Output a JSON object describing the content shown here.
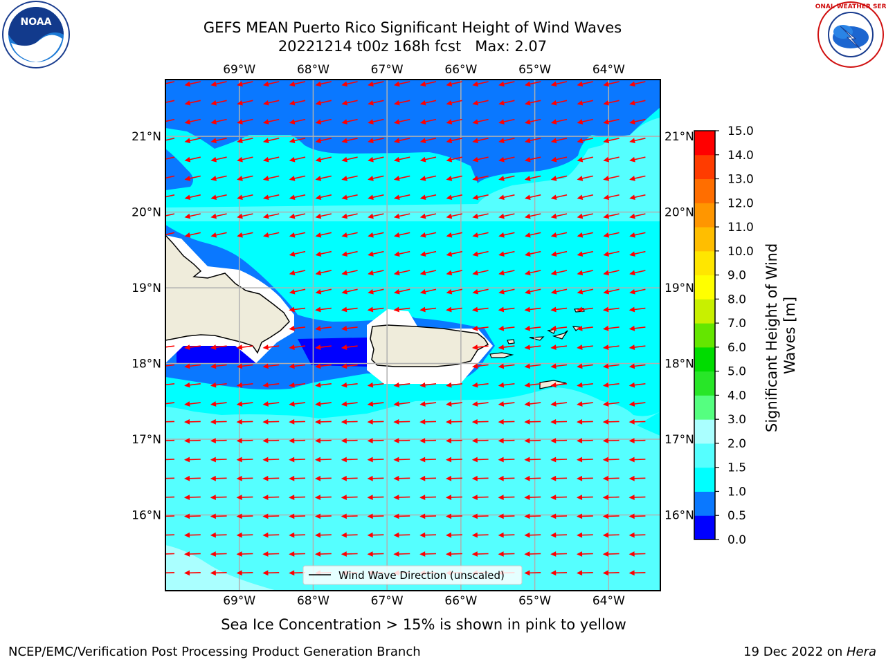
{
  "header": {
    "title_line1": "GEFS MEAN Puerto Rico Significant Height of Wind Waves",
    "title_line2": "20221214 t00z 168h fcst   Max: 2.07"
  },
  "logos": {
    "left": {
      "icon": "noaa-logo-icon",
      "text": "NOAA"
    },
    "right": {
      "icon": "nws-logo-icon",
      "text": "NATIONAL WEATHER SERVICE"
    }
  },
  "map": {
    "lon_ticks": [
      "69°W",
      "68°W",
      "67°W",
      "66°W",
      "65°W",
      "64°W"
    ],
    "lat_ticks": [
      "21°N",
      "20°N",
      "19°N",
      "18°N",
      "17°N",
      "16°N"
    ],
    "lon_range": [
      -70.0,
      -63.3
    ],
    "lat_range": [
      15.0,
      21.75
    ],
    "land_color": "#efecdb",
    "arrow_color": "#ff0000",
    "legend_label": "Wind Wave Direction (unscaled)"
  },
  "colorbar": {
    "label": "Significant Height of Wind Waves [m]",
    "levels": [
      "0.0",
      "0.5",
      "1.0",
      "1.5",
      "2.0",
      "3.0",
      "4.0",
      "5.0",
      "6.0",
      "7.0",
      "8.0",
      "9.0",
      "10.0",
      "11.0",
      "12.0",
      "13.0",
      "14.0",
      "15.0"
    ],
    "colors": [
      "#0000ff",
      "#0a78ff",
      "#00ffff",
      "#55ffff",
      "#aaffff",
      "#55ff80",
      "#28e628",
      "#00dc00",
      "#64e600",
      "#c8f000",
      "#ffff00",
      "#ffe600",
      "#ffbe00",
      "#ff9600",
      "#ff6e00",
      "#ff3c00",
      "#ff0000"
    ]
  },
  "caption": "Sea Ice Concentration > 15% is shown in pink to yellow",
  "footer": {
    "left": "NCEP/EMC/Verification Post Processing Product Generation Branch",
    "right_prefix": "19 Dec 2022 on ",
    "right_italic": "Hera"
  }
}
